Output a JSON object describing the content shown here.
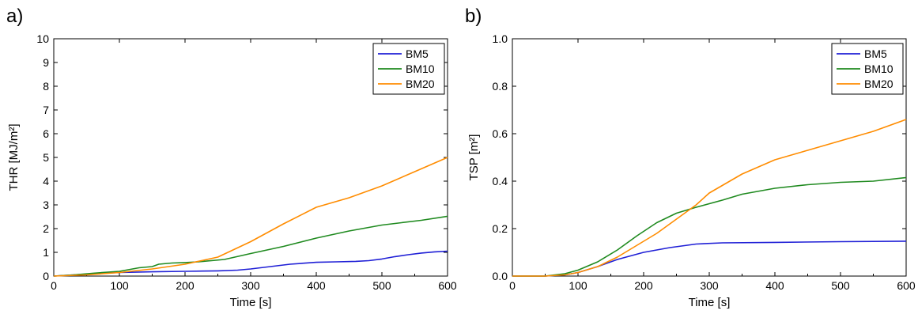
{
  "chart_data": [
    {
      "type": "line",
      "panel_label": "a)",
      "xlabel": "Time [s]",
      "ylabel": "THR [MJ/m²]",
      "xlim": [
        0,
        600
      ],
      "ylim": [
        0,
        10
      ],
      "xticks": [
        0,
        100,
        200,
        300,
        400,
        500,
        600
      ],
      "yticks": [
        0,
        1,
        2,
        3,
        4,
        5,
        6,
        7,
        8,
        9,
        10
      ],
      "grid": false,
      "legend_position": "top-right",
      "series": [
        {
          "name": "BM5",
          "color": "#1f1fd6",
          "x": [
            0,
            30,
            60,
            100,
            150,
            200,
            250,
            280,
            300,
            330,
            360,
            400,
            430,
            460,
            480,
            500,
            520,
            540,
            560,
            580,
            600
          ],
          "y": [
            0,
            0.05,
            0.1,
            0.15,
            0.18,
            0.2,
            0.22,
            0.25,
            0.3,
            0.4,
            0.5,
            0.58,
            0.6,
            0.62,
            0.65,
            0.72,
            0.82,
            0.9,
            0.97,
            1.02,
            1.05
          ]
        },
        {
          "name": "BM10",
          "color": "#1f8a1f",
          "x": [
            0,
            30,
            60,
            100,
            130,
            150,
            160,
            180,
            200,
            220,
            260,
            300,
            350,
            400,
            450,
            500,
            530,
            560,
            600
          ],
          "y": [
            0,
            0.05,
            0.12,
            0.2,
            0.35,
            0.4,
            0.5,
            0.55,
            0.57,
            0.6,
            0.7,
            0.95,
            1.25,
            1.6,
            1.9,
            2.15,
            2.25,
            2.35,
            2.52
          ]
        },
        {
          "name": "BM20",
          "color": "#ff8c00",
          "x": [
            0,
            50,
            100,
            150,
            200,
            250,
            300,
            350,
            400,
            450,
            500,
            550,
            600
          ],
          "y": [
            0,
            0.05,
            0.15,
            0.3,
            0.5,
            0.8,
            1.45,
            2.2,
            2.9,
            3.3,
            3.8,
            4.4,
            5.0
          ]
        }
      ]
    },
    {
      "type": "line",
      "panel_label": "b)",
      "xlabel": "Time [s]",
      "ylabel": "TSP [m²]",
      "xlim": [
        0,
        600
      ],
      "ylim": [
        0,
        1.0
      ],
      "xticks": [
        0,
        100,
        200,
        300,
        400,
        500,
        600
      ],
      "yticks": [
        0.0,
        0.2,
        0.4,
        0.6,
        0.8,
        1.0
      ],
      "grid": false,
      "legend_position": "top-right",
      "series": [
        {
          "name": "BM5",
          "color": "#1f1fd6",
          "x": [
            0,
            50,
            80,
            100,
            130,
            160,
            200,
            240,
            280,
            320,
            400,
            500,
            600
          ],
          "y": [
            0,
            0,
            0.005,
            0.015,
            0.04,
            0.07,
            0.1,
            0.12,
            0.135,
            0.14,
            0.142,
            0.145,
            0.147
          ]
        },
        {
          "name": "BM10",
          "color": "#1f8a1f",
          "x": [
            0,
            50,
            80,
            100,
            130,
            160,
            190,
            220,
            250,
            280,
            320,
            350,
            400,
            450,
            500,
            550,
            600
          ],
          "y": [
            0,
            0,
            0.01,
            0.025,
            0.06,
            0.11,
            0.17,
            0.225,
            0.265,
            0.29,
            0.32,
            0.345,
            0.37,
            0.385,
            0.395,
            0.4,
            0.415
          ]
        },
        {
          "name": "BM20",
          "color": "#ff8c00",
          "x": [
            0,
            50,
            80,
            100,
            130,
            160,
            190,
            220,
            250,
            280,
            300,
            350,
            400,
            450,
            500,
            550,
            600
          ],
          "y": [
            0,
            0,
            0.005,
            0.015,
            0.04,
            0.08,
            0.13,
            0.18,
            0.24,
            0.3,
            0.35,
            0.43,
            0.49,
            0.53,
            0.57,
            0.61,
            0.66
          ]
        }
      ]
    }
  ]
}
